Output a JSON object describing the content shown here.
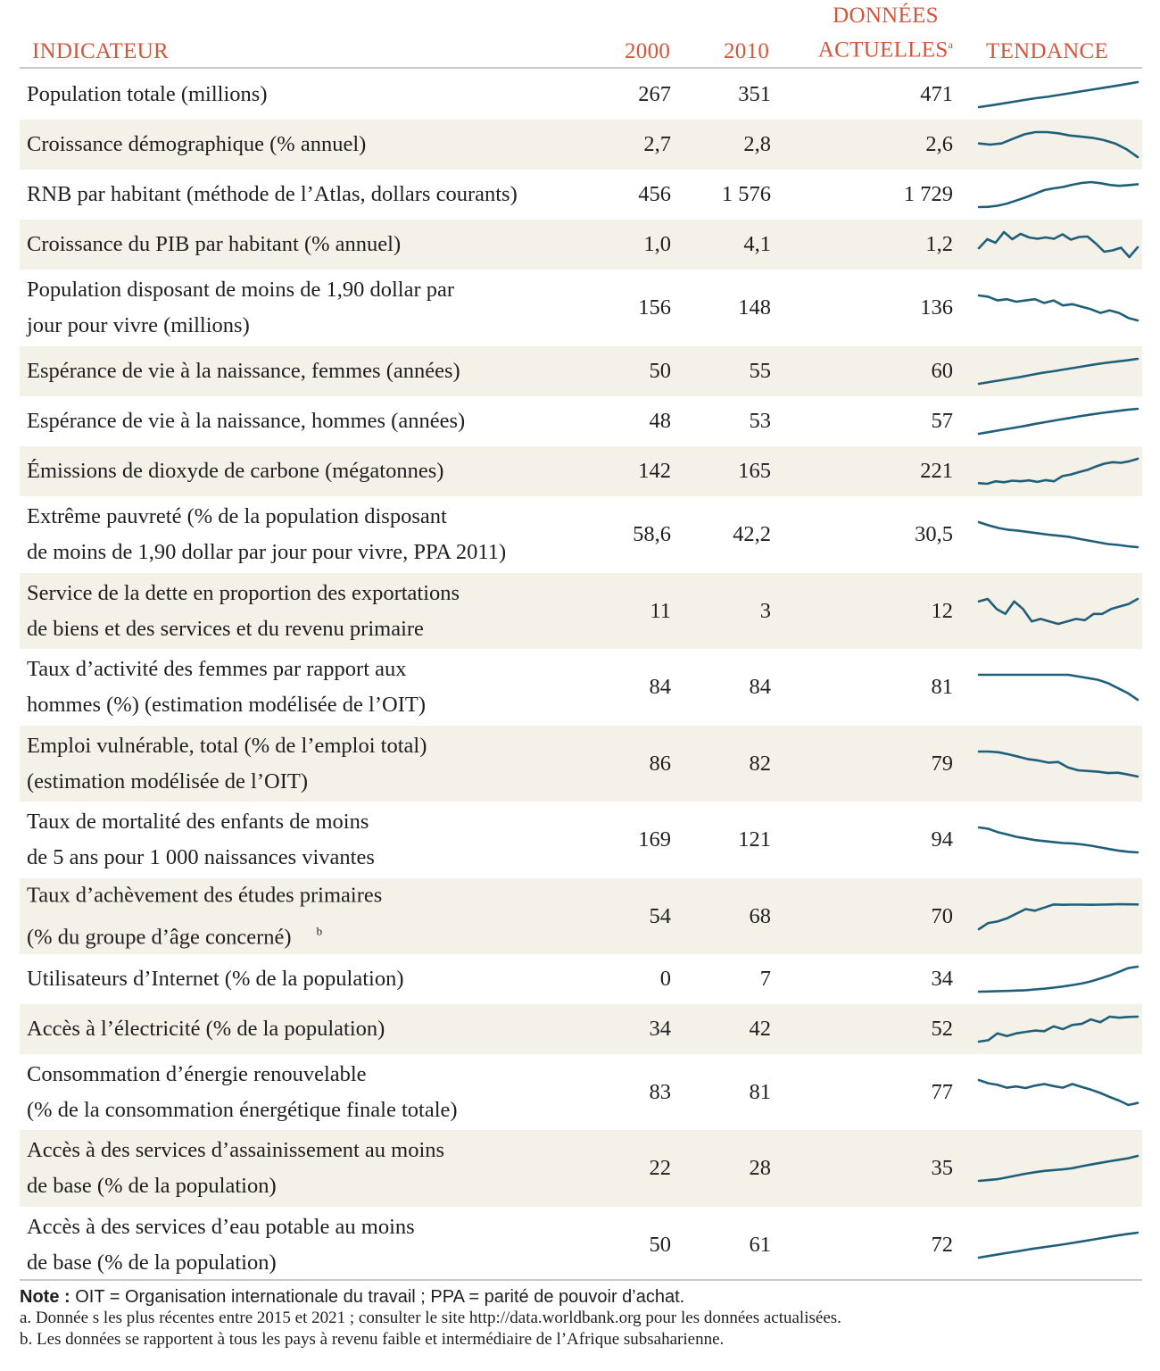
{
  "header": {
    "indicator": "INDICATEUR",
    "y2000": "2000",
    "y2010": "2010",
    "current_line1": "DONNÉES",
    "current_line2": "ACTUELLES",
    "current_note": "a",
    "trend": "TENDANCE"
  },
  "colors": {
    "accent": "#d6553a",
    "sparkline": "#1f5f7a",
    "row_shade": "#f4f1e8"
  },
  "rows": [
    {
      "label": "Population totale (millions)",
      "v2000": "267",
      "v2010": "351",
      "current": "471",
      "trend": [
        267,
        280,
        295,
        310,
        325,
        340,
        351,
        365,
        380,
        395,
        410,
        425,
        440,
        455,
        471
      ]
    },
    {
      "label": "Croissance démographique (% annuel)",
      "v2000": "2,7",
      "v2010": "2,8",
      "current": "2,6",
      "trend": [
        2.72,
        2.71,
        2.72,
        2.76,
        2.8,
        2.82,
        2.82,
        2.81,
        2.79,
        2.78,
        2.77,
        2.75,
        2.72,
        2.67,
        2.6
      ]
    },
    {
      "label": "RNB par habitant (méthode de l’Atlas, dollars courants)",
      "v2000": "456",
      "v2010": "1 576",
      "current": "1 729",
      "trend": [
        456,
        470,
        530,
        650,
        820,
        1000,
        1200,
        1400,
        1500,
        1576,
        1700,
        1800,
        1850,
        1790,
        1690,
        1640,
        1680,
        1729
      ]
    },
    {
      "label": "Croissance du PIB par habitant (% annuel)",
      "v2000": "1,0",
      "v2010": "4,1",
      "current": "1,2",
      "trend": [
        1.0,
        3.0,
        2.2,
        4.6,
        3.0,
        4.2,
        3.4,
        3.1,
        3.4,
        3.1,
        4.1,
        2.9,
        3.5,
        3.6,
        2.0,
        0.2,
        0.5,
        1.1,
        -1.0,
        1.2
      ]
    },
    {
      "label": "Population disposant de moins de 1,90 dollar par\njour pour vivre (millions)",
      "v2000": "156",
      "v2010": "148",
      "current": "136",
      "trend": [
        156,
        155,
        152,
        153,
        151,
        152,
        153,
        150,
        152,
        148,
        149,
        147,
        145,
        142,
        144,
        142,
        138,
        136
      ]
    },
    {
      "label": "Espérance de vie à la naissance, femmes (années)",
      "v2000": "50",
      "v2010": "55",
      "current": "60",
      "trend": [
        50,
        50.7,
        51.4,
        52.1,
        52.8,
        53.6,
        54.4,
        55,
        55.7,
        56.4,
        57.1,
        57.8,
        58.4,
        58.9,
        59.4,
        60
      ]
    },
    {
      "label": "Espérance de vie à la naissance, hommes (années)",
      "v2000": "48",
      "v2010": "53",
      "current": "57",
      "trend": [
        48,
        48.7,
        49.4,
        50.1,
        50.8,
        51.6,
        52.3,
        53,
        53.7,
        54.4,
        55,
        55.6,
        56.1,
        56.6,
        57
      ]
    },
    {
      "label": "Émissions de dioxyde de carbone (mégatonnes)",
      "v2000": "142",
      "v2010": "165",
      "current": "221",
      "trend": [
        142,
        140,
        148,
        145,
        150,
        148,
        151,
        146,
        152,
        148,
        165,
        170,
        178,
        185,
        196,
        205,
        210,
        208,
        213,
        221
      ]
    },
    {
      "label": "Extrême pauvreté (% de la population disposant\nde moins de 1,90 dollar par jour pour vivre, PPA 2011)",
      "v2000": "58,6",
      "v2010": "42,2",
      "current": "30,5",
      "trend": [
        58.6,
        55,
        52,
        50,
        49,
        47.5,
        46,
        44.5,
        43.3,
        42.2,
        40,
        38,
        36,
        34,
        33,
        31.5,
        30.5
      ]
    },
    {
      "label": "Service de la dette en proportion des exportations\nde biens et des services et du revenu primaire",
      "v2000": "11",
      "v2010": "3",
      "current": "12",
      "trend": [
        11,
        12,
        8,
        6,
        11,
        8,
        3,
        4,
        3,
        2,
        3,
        4,
        3.5,
        6,
        6,
        8,
        9,
        10,
        12
      ]
    },
    {
      "label": "Taux d’activité des femmes par rapport aux\nhommes (%) (estimation modélisée de l’OIT)",
      "v2000": "84",
      "v2010": "84",
      "current": "81",
      "trend": [
        84,
        84,
        84,
        84,
        84,
        84,
        84,
        84,
        84,
        84,
        83.8,
        83.6,
        83.4,
        83,
        82.4,
        81.8,
        81
      ]
    },
    {
      "label": "Emploi vulnérable, total (% de l’emploi total)\n(estimation modélisée de l’OIT)",
      "v2000": "86",
      "v2010": "82",
      "current": "79",
      "trend": [
        86,
        86,
        85.8,
        85.2,
        84.5,
        83.8,
        83.4,
        82.8,
        83,
        81.4,
        80.6,
        80.4,
        80.2,
        79.8,
        79.9,
        79.4,
        78.8
      ]
    },
    {
      "label": "Taux de mortalité des enfants de moins\nde 5 ans pour 1 000 naissances vivantes",
      "v2000": "169",
      "v2010": "121",
      "current": "94",
      "trend": [
        169,
        165,
        155,
        148,
        141,
        136,
        131,
        128,
        125,
        122,
        121,
        118,
        114,
        109,
        104,
        99,
        96,
        94
      ]
    },
    {
      "label": "Taux d’achèvement des études primaires\n(% du groupe d’âge concerné)",
      "label_note": "b",
      "v2000": "54",
      "v2010": "68",
      "current": "70",
      "trend": [
        54,
        58,
        59,
        61,
        64,
        67,
        66,
        68,
        70,
        69.8,
        69.9,
        69.9,
        69.8,
        69.9,
        70,
        70.2,
        70.1,
        70
      ]
    },
    {
      "label": "Utilisateurs d’Internet (% de la population)",
      "v2000": "0",
      "v2010": "7",
      "current": "34",
      "trend": [
        0,
        0.3,
        0.7,
        1,
        1.5,
        2,
        3,
        4,
        5.5,
        7,
        9,
        11,
        14,
        18,
        22,
        27,
        32,
        34
      ]
    },
    {
      "label": "Accès à l’électricité (% de la population)",
      "v2000": "34",
      "v2010": "42",
      "current": "52",
      "trend": [
        34,
        35,
        40,
        38,
        40,
        41,
        42,
        41.5,
        45,
        43,
        46,
        46.8,
        50,
        48,
        52,
        51.2,
        51.8,
        52
      ]
    },
    {
      "label": "Consommation d’énergie renouvelable\n(% de la consommation énergétique finale totale)",
      "v2000": "83",
      "v2010": "81",
      "current": "77",
      "trend": [
        83,
        82.2,
        81.8,
        81.1,
        81.4,
        81,
        81.6,
        82,
        81.5,
        81.1,
        82,
        81.3,
        80.6,
        79.8,
        78.8,
        77.9,
        76.8,
        77.3
      ]
    },
    {
      "label": "Accès à des services d’assainissement au moins\nde base (% de la population)",
      "v2000": "22",
      "v2010": "28",
      "current": "35",
      "trend": [
        22,
        22.4,
        22.9,
        23.8,
        24.8,
        25.7,
        26.5,
        27.2,
        27.6,
        28,
        28.6,
        29.6,
        30.5,
        31.4,
        32.2,
        33,
        33.8,
        35
      ]
    },
    {
      "label": "Accès à des services d’eau potable au moins\nde base (% de la population)",
      "v2000": "50",
      "v2010": "61",
      "current": "72",
      "trend": [
        50,
        51.3,
        52.6,
        53.9,
        55.1,
        56.4,
        57.7,
        58.8,
        59.9,
        61,
        62.2,
        63.4,
        64.7,
        66,
        67.3,
        68.6,
        69.9,
        71,
        72
      ]
    }
  ],
  "notes": {
    "note_label": "Note :",
    "note_text": " OIT = Organisation internationale du travail ; PPA = parité de pouvoir d’achat.",
    "a": "a.  Donnée  s les plus récentes entre 2015 et 2021 ; consulter le site http://data.worldbank.org pour les données actualisées.",
    "b": "b. Les données se rapportent à tous les pays à revenu faible et intermédiaire de l’Afrique subsaharienne."
  }
}
